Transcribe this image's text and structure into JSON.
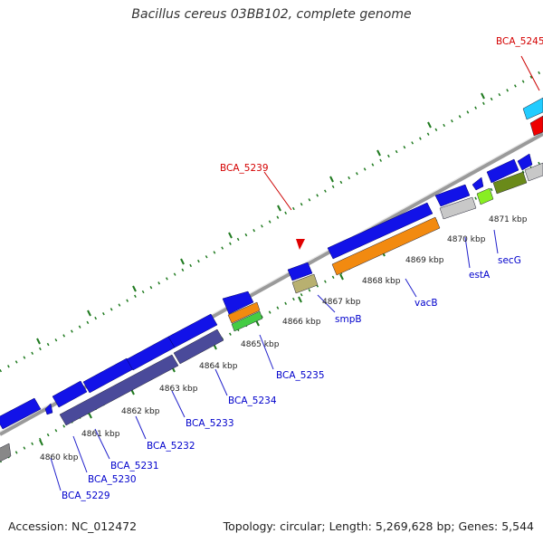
{
  "title": "Bacillus cereus 03BB102, complete genome",
  "footer": {
    "accession": "Accession: NC_012472",
    "summary": "Topology: circular; Length: 5,269,628 bp; Genes: 5,544"
  },
  "colors": {
    "backbone": "#9a9a9a",
    "tick": "#1f7a1f",
    "forward_gene": "#0a0ae6",
    "label_forward": "#0000cc",
    "label_callout": "#d40000"
  },
  "kbp_labels": [
    "4860 kbp",
    "4861 kbp",
    "4862 kbp",
    "4863 kbp",
    "4864 kbp",
    "4865 kbp",
    "4866 kbp",
    "4867 kbp",
    "4868 kbp",
    "4869 kbp",
    "4870 kbp",
    "4871 kbp"
  ],
  "gene_labels": [
    "BCA_5229",
    "BCA_5230",
    "BCA_5231",
    "BCA_5232",
    "BCA_5233",
    "BCA_5234",
    "BCA_5235",
    "smpB",
    "vacB",
    "estA",
    "secG"
  ],
  "callouts": [
    "BCA_5239",
    "BCA_5245"
  ]
}
